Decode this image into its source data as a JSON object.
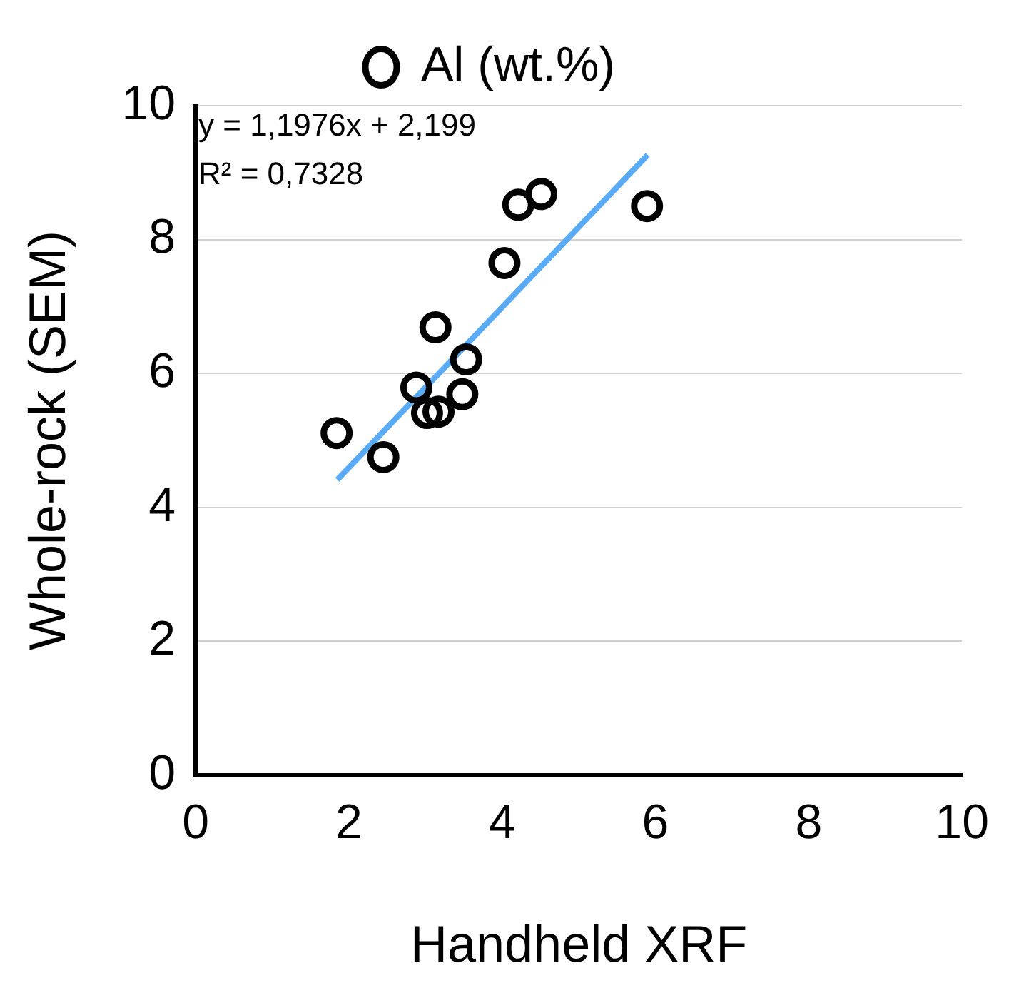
{
  "chart_data": {
    "type": "scatter",
    "xlabel": "Handheld XRF",
    "ylabel": "Whole-rock (SEM)",
    "xlim": [
      0,
      10
    ],
    "xticks": [
      0,
      2,
      4,
      6,
      8,
      10
    ],
    "ylim": [
      0,
      10
    ],
    "yticks": [
      0,
      2,
      4,
      6,
      8,
      10
    ],
    "grid": "y",
    "legend": "top",
    "marker": "circle",
    "annotations": [
      "y = 1,1976x + 2,199",
      "R² = 0,7328"
    ],
    "series": [
      {
        "name": "Al (wt.%)",
        "color": "#000000",
        "x": [
          1.84,
          2.45,
          2.88,
          3.13,
          3.02,
          3.17,
          3.48,
          3.53,
          4.03,
          4.21,
          4.51,
          5.89
        ],
        "values": [
          5.11,
          4.75,
          5.79,
          6.69,
          5.41,
          5.43,
          5.69,
          6.21,
          7.65,
          8.52,
          8.68,
          8.5
        ]
      },
      {
        "type": "line",
        "color": "#5aabf5",
        "x": [
          1.85,
          5.9
        ],
        "values": [
          4.414,
          9.265
        ],
        "marker": "none"
      }
    ]
  }
}
